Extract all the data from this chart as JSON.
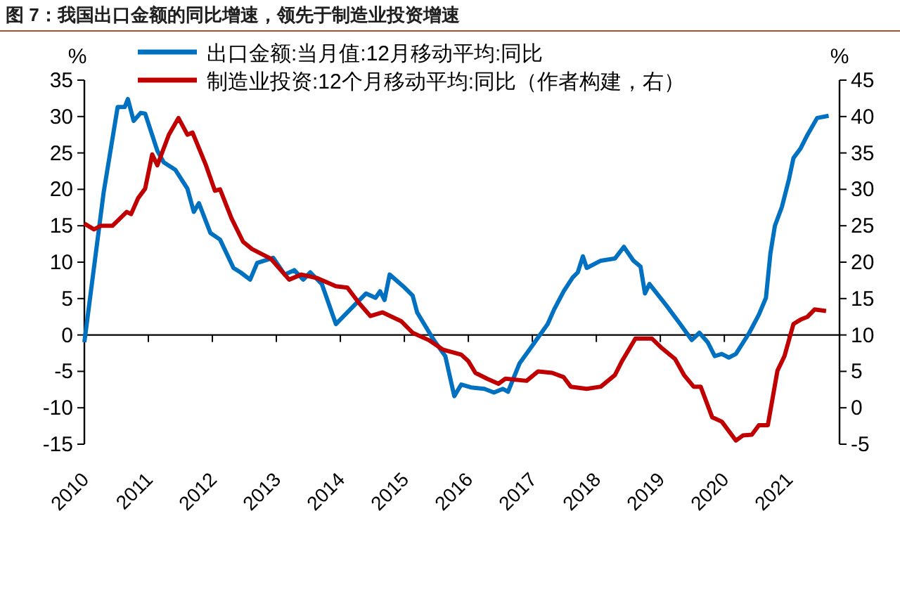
{
  "chart_data": {
    "type": "line",
    "title": "图 7：我国出口金额的同比增速，领先于制造业投资增速",
    "ylabel": "%",
    "y2label": "%",
    "xlim": [
      2010,
      2021.8
    ],
    "xticks": [
      2010,
      2011,
      2012,
      2013,
      2014,
      2015,
      2016,
      2017,
      2018,
      2019,
      2020,
      2021
    ],
    "ylim": [
      -15,
      35
    ],
    "yticks": [
      -15,
      -10,
      -5,
      0,
      5,
      10,
      15,
      20,
      25,
      30,
      35
    ],
    "y2lim": [
      -5,
      45
    ],
    "y2ticks": [
      -5,
      0,
      5,
      10,
      15,
      20,
      25,
      30,
      35,
      40,
      45
    ],
    "legend": "top",
    "series": [
      {
        "name": "出口金额:当月值:12月移动平均:同比",
        "color": "#0070c0",
        "x": [
          2010.0,
          2010.3,
          2010.52,
          2010.63,
          2010.68,
          2010.77,
          2010.88,
          2010.95,
          2011.14,
          2011.24,
          2011.42,
          2011.61,
          2011.71,
          2011.79,
          2011.97,
          2012.12,
          2012.33,
          2012.44,
          2012.59,
          2012.7,
          2012.95,
          2013.13,
          2013.28,
          2013.42,
          2013.53,
          2013.71,
          2013.93,
          2014.22,
          2014.4,
          2014.55,
          2014.62,
          2014.69,
          2014.77,
          2014.98,
          2015.13,
          2015.2,
          2015.46,
          2015.64,
          2015.78,
          2015.89,
          2016.04,
          2016.25,
          2016.4,
          2016.54,
          2016.62,
          2016.8,
          2016.98,
          2017.24,
          2017.34,
          2017.49,
          2017.63,
          2017.71,
          2017.79,
          2017.85,
          2018.07,
          2018.29,
          2018.43,
          2018.58,
          2018.69,
          2018.76,
          2018.83,
          2019.09,
          2019.31,
          2019.49,
          2019.61,
          2019.74,
          2019.85,
          2019.96,
          2020.07,
          2020.18,
          2020.39,
          2020.54,
          2020.65,
          2020.72,
          2020.79,
          2020.9,
          2021.01,
          2021.08,
          2021.19,
          2021.3,
          2021.45,
          2021.63
        ],
        "values": [
          -1,
          19.5,
          31.3,
          31.3,
          32.4,
          29.4,
          30.5,
          30.4,
          25.3,
          23.7,
          22.7,
          20.1,
          16.9,
          18.1,
          14.0,
          13.1,
          9.2,
          8.6,
          7.6,
          9.9,
          10.6,
          8.3,
          8.9,
          7.6,
          8.6,
          7.0,
          1.5,
          4.1,
          5.7,
          5.1,
          6.0,
          4.8,
          8.3,
          6.7,
          5.4,
          3.1,
          -0.7,
          -2.9,
          -8.4,
          -6.8,
          -7.2,
          -7.4,
          -7.9,
          -7.4,
          -7.8,
          -3.9,
          -1.7,
          1.5,
          3.5,
          6.0,
          7.9,
          8.6,
          10.8,
          9.2,
          10.2,
          10.5,
          12.1,
          10.2,
          9.4,
          5.7,
          7.0,
          4.1,
          1.5,
          -0.7,
          0.3,
          -1.0,
          -2.9,
          -2.6,
          -3.1,
          -2.6,
          0.3,
          2.8,
          5.1,
          11.2,
          15,
          17.6,
          21.4,
          24.3,
          25.6,
          27.5,
          29.8,
          30.1
        ]
      },
      {
        "name": "制造业投资:12个月移动平均:同比（作者构建，右）",
        "color": "#c00000",
        "axis": "y2",
        "x": [
          2010.0,
          2010.15,
          2010.26,
          2010.44,
          2010.66,
          2010.73,
          2010.84,
          2010.95,
          2011.06,
          2011.14,
          2011.32,
          2011.47,
          2011.61,
          2011.69,
          2011.9,
          2012.04,
          2012.12,
          2012.3,
          2012.48,
          2012.62,
          2012.91,
          2013.2,
          2013.39,
          2013.64,
          2013.93,
          2014.11,
          2014.29,
          2014.47,
          2014.66,
          2014.95,
          2015.13,
          2015.38,
          2015.6,
          2015.89,
          2016.0,
          2016.11,
          2016.29,
          2016.47,
          2016.58,
          2016.91,
          2017.09,
          2017.31,
          2017.49,
          2017.6,
          2017.85,
          2018.07,
          2018.29,
          2018.4,
          2018.61,
          2018.87,
          2019.01,
          2019.23,
          2019.37,
          2019.52,
          2019.63,
          2019.81,
          2019.96,
          2020.18,
          2020.29,
          2020.43,
          2020.54,
          2020.68,
          2020.83,
          2020.94,
          2021.08,
          2021.19,
          2021.3,
          2021.41,
          2021.59
        ],
        "values": [
          25.3,
          24.5,
          25.0,
          25.0,
          26.9,
          26.6,
          28.8,
          30.1,
          34.8,
          33.3,
          37.5,
          39.8,
          37.5,
          37.8,
          33.3,
          29.8,
          30.0,
          26.0,
          22.8,
          21.8,
          20.5,
          17.6,
          18.3,
          17.8,
          16.7,
          16.5,
          14.4,
          12.6,
          13.1,
          11.9,
          10.3,
          9.3,
          8.0,
          7.3,
          6.4,
          4.8,
          4.0,
          3.3,
          4.0,
          3.7,
          5.0,
          4.8,
          4.2,
          2.9,
          2.6,
          2.9,
          4.5,
          6.4,
          9.5,
          9.5,
          8.3,
          6.7,
          4.5,
          2.9,
          2.9,
          -1.3,
          -1.9,
          -4.5,
          -3.8,
          -3.7,
          -2.4,
          -2.4,
          5.1,
          7.1,
          11.5,
          12.1,
          12.5,
          13.5,
          13.3
        ]
      }
    ]
  }
}
